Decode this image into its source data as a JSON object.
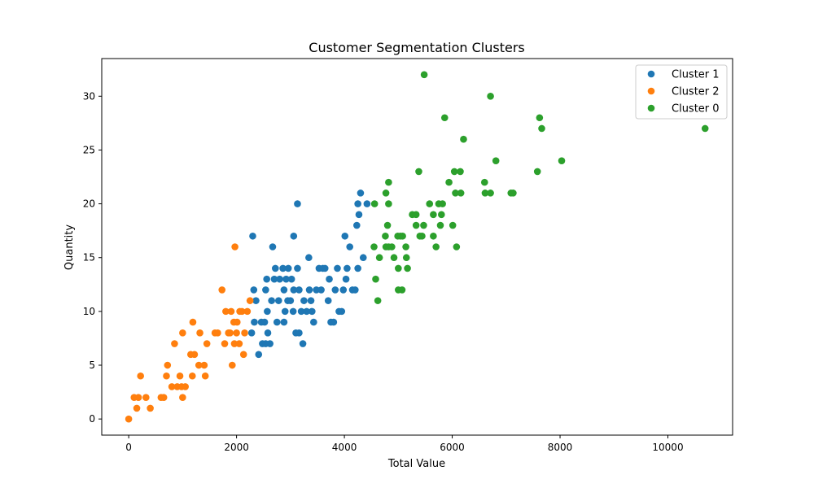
{
  "chart_data": {
    "type": "scatter",
    "title": "Customer Segmentation Clusters",
    "xlabel": "Total Value",
    "ylabel": "Quantity",
    "xlim": [
      -500,
      11200
    ],
    "ylim": [
      -1.5,
      33.5
    ],
    "xticks": [
      0,
      2000,
      4000,
      6000,
      8000,
      10000
    ],
    "yticks": [
      0,
      5,
      10,
      15,
      20,
      25,
      30
    ],
    "grid": false,
    "legend_position": "top-right",
    "series": [
      {
        "name": "Cluster 1",
        "color": "#1f77b4",
        "points": [
          [
            2300,
            17
          ],
          [
            2670,
            16
          ],
          [
            3060,
            17
          ],
          [
            3130,
            20
          ],
          [
            2320,
            12
          ],
          [
            2330,
            9
          ],
          [
            2280,
            8
          ],
          [
            2360,
            11
          ],
          [
            2410,
            6
          ],
          [
            2460,
            9
          ],
          [
            2480,
            7
          ],
          [
            2520,
            9
          ],
          [
            2540,
            12
          ],
          [
            2560,
            13
          ],
          [
            2570,
            10
          ],
          [
            2580,
            8
          ],
          [
            2620,
            7
          ],
          [
            2650,
            11
          ],
          [
            2700,
            13
          ],
          [
            2720,
            14
          ],
          [
            2750,
            9
          ],
          [
            2780,
            11
          ],
          [
            2800,
            13
          ],
          [
            2860,
            14
          ],
          [
            2880,
            12
          ],
          [
            2900,
            10
          ],
          [
            2920,
            13
          ],
          [
            2960,
            14
          ],
          [
            3000,
            11
          ],
          [
            3020,
            13
          ],
          [
            3050,
            10
          ],
          [
            3100,
            8
          ],
          [
            3130,
            14
          ],
          [
            3160,
            12
          ],
          [
            3200,
            10
          ],
          [
            3230,
            7
          ],
          [
            3250,
            11
          ],
          [
            3300,
            10
          ],
          [
            3350,
            12
          ],
          [
            3380,
            11
          ],
          [
            3400,
            10
          ],
          [
            3430,
            9
          ],
          [
            3480,
            12
          ],
          [
            3530,
            14
          ],
          [
            3570,
            12
          ],
          [
            3600,
            14
          ],
          [
            3640,
            14
          ],
          [
            3700,
            11
          ],
          [
            3720,
            13
          ],
          [
            3750,
            9
          ],
          [
            3800,
            9
          ],
          [
            3830,
            12
          ],
          [
            3870,
            14
          ],
          [
            3900,
            10
          ],
          [
            3950,
            10
          ],
          [
            3980,
            12
          ],
          [
            4030,
            13
          ],
          [
            4050,
            14
          ],
          [
            4100,
            16
          ],
          [
            4150,
            12
          ],
          [
            4200,
            12
          ],
          [
            4230,
            18
          ],
          [
            4250,
            20
          ],
          [
            4270,
            19
          ],
          [
            4300,
            21
          ],
          [
            4350,
            15
          ],
          [
            4250,
            14
          ],
          [
            4420,
            20
          ],
          [
            4010,
            17
          ],
          [
            3340,
            15
          ],
          [
            2880,
            9
          ],
          [
            3160,
            8
          ],
          [
            2540,
            7
          ],
          [
            3060,
            12
          ],
          [
            2950,
            11
          ]
        ]
      },
      {
        "name": "Cluster 2",
        "color": "#ff7f0e",
        "points": [
          [
            0,
            0
          ],
          [
            100,
            2
          ],
          [
            150,
            1
          ],
          [
            180,
            2
          ],
          [
            220,
            4
          ],
          [
            320,
            2
          ],
          [
            400,
            1
          ],
          [
            600,
            2
          ],
          [
            650,
            2
          ],
          [
            700,
            4
          ],
          [
            720,
            5
          ],
          [
            800,
            3
          ],
          [
            850,
            7
          ],
          [
            900,
            3
          ],
          [
            950,
            4
          ],
          [
            980,
            3
          ],
          [
            1000,
            8
          ],
          [
            1000,
            2
          ],
          [
            1050,
            3
          ],
          [
            1150,
            6
          ],
          [
            1180,
            4
          ],
          [
            1190,
            9
          ],
          [
            1220,
            6
          ],
          [
            1300,
            5
          ],
          [
            1320,
            8
          ],
          [
            1400,
            5
          ],
          [
            1420,
            4
          ],
          [
            1450,
            7
          ],
          [
            1600,
            8
          ],
          [
            1650,
            8
          ],
          [
            1730,
            12
          ],
          [
            1780,
            7
          ],
          [
            1800,
            10
          ],
          [
            1850,
            8
          ],
          [
            1900,
            10
          ],
          [
            1920,
            5
          ],
          [
            1950,
            9
          ],
          [
            1960,
            7
          ],
          [
            1970,
            16
          ],
          [
            2000,
            8
          ],
          [
            2010,
            9
          ],
          [
            2050,
            7
          ],
          [
            2060,
            10
          ],
          [
            2100,
            10
          ],
          [
            2130,
            6
          ],
          [
            2150,
            8
          ],
          [
            2200,
            10
          ],
          [
            2250,
            11
          ],
          [
            1880,
            8
          ]
        ]
      },
      {
        "name": "Cluster 0",
        "color": "#2ca02c",
        "points": [
          [
            5480,
            32
          ],
          [
            6710,
            30
          ],
          [
            5860,
            28
          ],
          [
            7620,
            28
          ],
          [
            7660,
            27
          ],
          [
            10690,
            27
          ],
          [
            6210,
            26
          ],
          [
            6810,
            24
          ],
          [
            8030,
            24
          ],
          [
            5380,
            23
          ],
          [
            6040,
            23
          ],
          [
            6150,
            23
          ],
          [
            7580,
            23
          ],
          [
            4820,
            22
          ],
          [
            5940,
            22
          ],
          [
            6600,
            22
          ],
          [
            4560,
            20
          ],
          [
            4770,
            21
          ],
          [
            4820,
            20
          ],
          [
            5580,
            20
          ],
          [
            5750,
            20
          ],
          [
            5820,
            20
          ],
          [
            6060,
            21
          ],
          [
            6160,
            21
          ],
          [
            6610,
            21
          ],
          [
            6710,
            21
          ],
          [
            7090,
            21
          ],
          [
            7130,
            21
          ],
          [
            5260,
            19
          ],
          [
            5330,
            19
          ],
          [
            5650,
            19
          ],
          [
            5800,
            19
          ],
          [
            4800,
            18
          ],
          [
            5330,
            18
          ],
          [
            5470,
            18
          ],
          [
            5780,
            18
          ],
          [
            6010,
            18
          ],
          [
            4760,
            17
          ],
          [
            5040,
            17
          ],
          [
            5080,
            17
          ],
          [
            5400,
            17
          ],
          [
            5440,
            17
          ],
          [
            5650,
            17
          ],
          [
            4770,
            16
          ],
          [
            4820,
            16
          ],
          [
            4880,
            16
          ],
          [
            4550,
            16
          ],
          [
            5140,
            16
          ],
          [
            5700,
            16
          ],
          [
            6080,
            16
          ],
          [
            4650,
            15
          ],
          [
            4920,
            15
          ],
          [
            5150,
            15
          ],
          [
            5000,
            14
          ],
          [
            5170,
            14
          ],
          [
            4580,
            13
          ],
          [
            5000,
            12
          ],
          [
            5070,
            12
          ],
          [
            4620,
            11
          ],
          [
            4990,
            17
          ]
        ]
      }
    ]
  }
}
